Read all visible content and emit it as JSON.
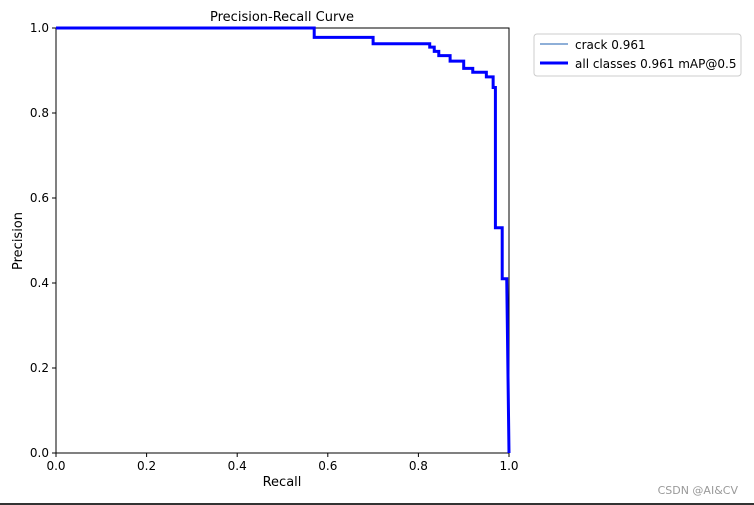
{
  "chart_data": {
    "type": "line",
    "title": "Precision-Recall Curve",
    "xlabel": "Recall",
    "ylabel": "Precision",
    "xlim": [
      0.0,
      1.0
    ],
    "ylim": [
      0.0,
      1.0
    ],
    "xticks": [
      "0.0",
      "0.2",
      "0.4",
      "0.6",
      "0.8",
      "1.0"
    ],
    "yticks": [
      "0.0",
      "0.2",
      "0.4",
      "0.6",
      "0.8",
      "1.0"
    ],
    "grid": false,
    "legend_position": "outside-top-right",
    "series": [
      {
        "name": "crack 0.961",
        "color": "#4a7fc1",
        "style": "thin",
        "x": [
          0.0,
          0.57,
          0.57,
          0.7,
          0.7,
          0.825,
          0.825,
          0.835,
          0.835,
          0.845,
          0.845,
          0.87,
          0.87,
          0.9,
          0.9,
          0.92,
          0.92,
          0.95,
          0.95,
          0.965,
          0.965,
          0.97,
          0.97,
          0.985,
          0.985,
          0.995,
          0.995,
          1.0
        ],
        "y": [
          1.0,
          1.0,
          0.978,
          0.978,
          0.963,
          0.963,
          0.955,
          0.955,
          0.945,
          0.945,
          0.935,
          0.935,
          0.922,
          0.922,
          0.905,
          0.905,
          0.896,
          0.896,
          0.885,
          0.885,
          0.86,
          0.86,
          0.53,
          0.53,
          0.41,
          0.41,
          0.41,
          0.0
        ]
      },
      {
        "name": "all classes 0.961 mAP@0.5",
        "color": "#0000ff",
        "style": "thick",
        "x": [
          0.0,
          0.57,
          0.57,
          0.7,
          0.7,
          0.825,
          0.825,
          0.835,
          0.835,
          0.845,
          0.845,
          0.87,
          0.87,
          0.9,
          0.9,
          0.92,
          0.92,
          0.95,
          0.95,
          0.965,
          0.965,
          0.97,
          0.97,
          0.985,
          0.985,
          0.995,
          0.995,
          1.0
        ],
        "y": [
          1.0,
          1.0,
          0.978,
          0.978,
          0.963,
          0.963,
          0.955,
          0.955,
          0.945,
          0.945,
          0.935,
          0.935,
          0.922,
          0.922,
          0.905,
          0.905,
          0.896,
          0.896,
          0.885,
          0.885,
          0.86,
          0.86,
          0.53,
          0.53,
          0.41,
          0.41,
          0.41,
          0.0
        ]
      }
    ]
  },
  "watermark": "CSDN @AI&CV"
}
